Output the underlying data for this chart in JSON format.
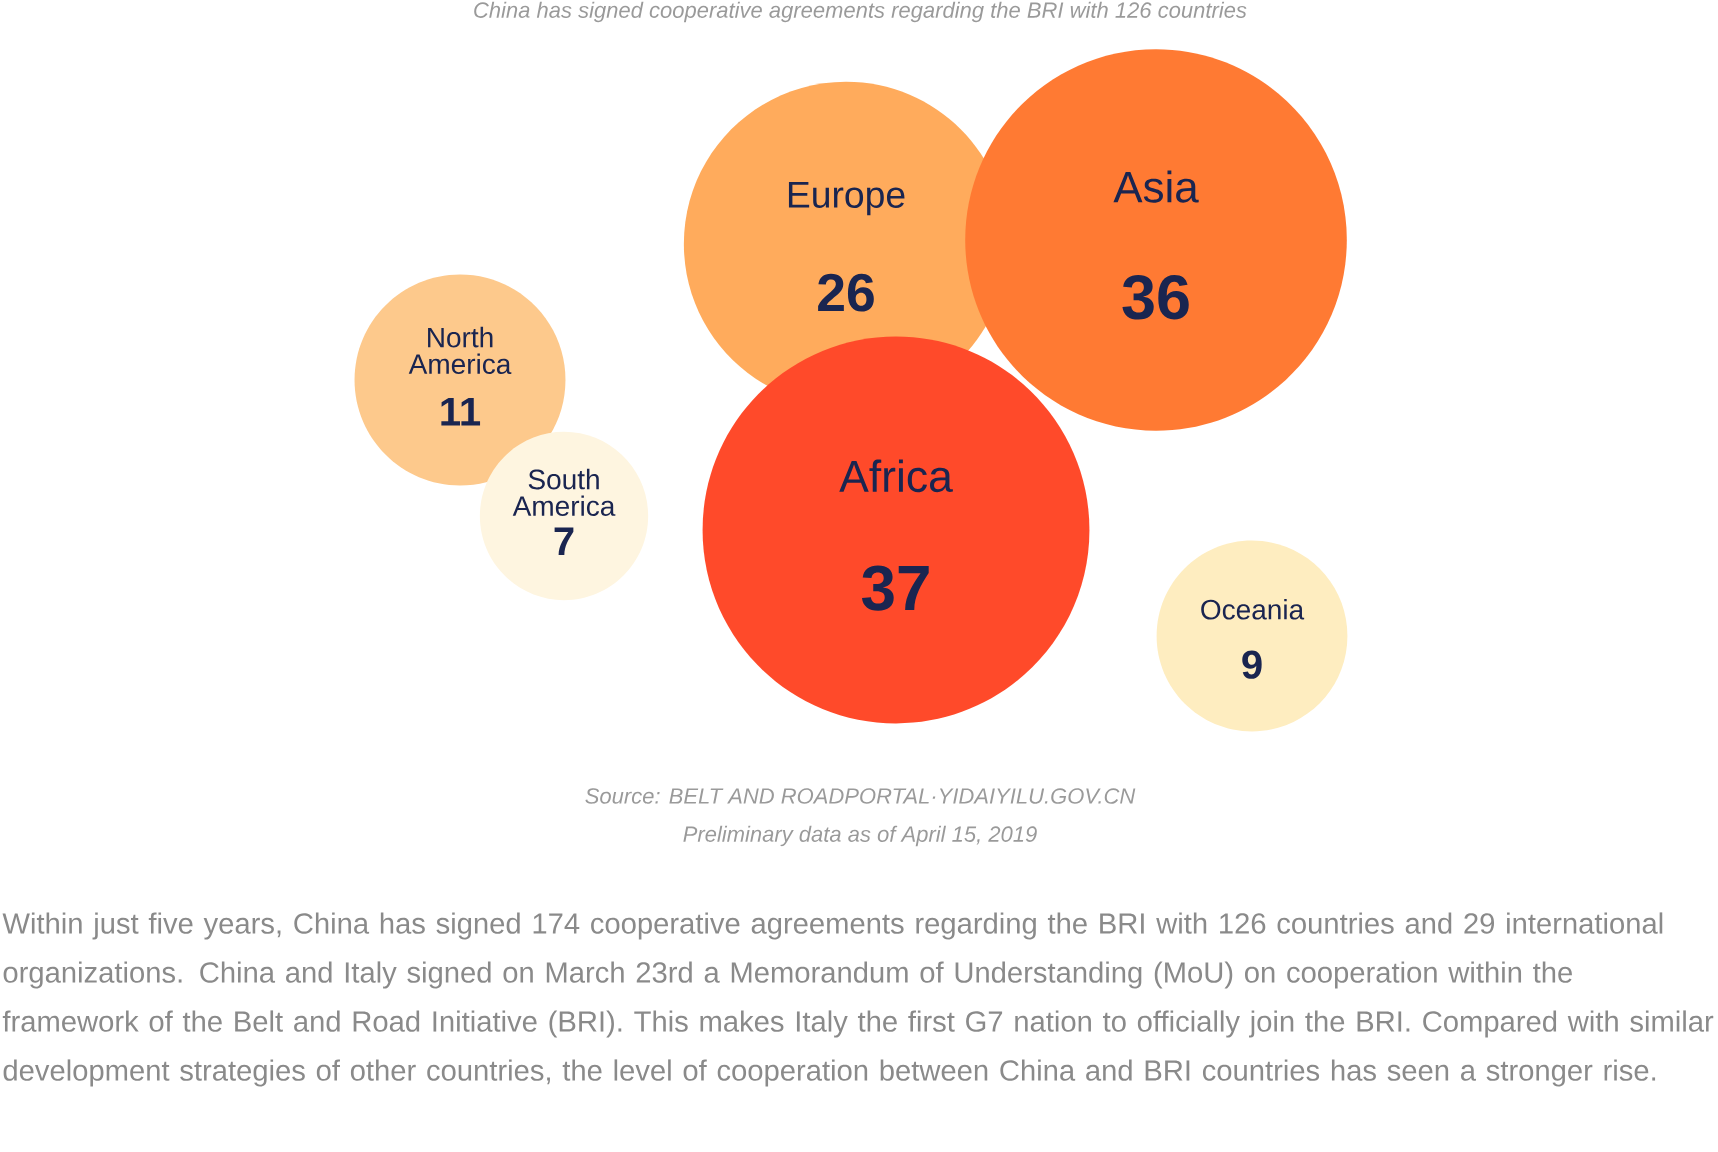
{
  "chart_data": {
    "type": "other",
    "title": "China has signed cooperative agreements regarding the BRI with 126 countries",
    "categories": [
      "Europe",
      "Asia",
      "North America",
      "Africa",
      "South America",
      "Oceania"
    ],
    "values": [
      26,
      36,
      11,
      37,
      7,
      9
    ],
    "colors": [
      "#ffab5c",
      "#ff7a33",
      "#fdc98c",
      "#ff4a2a",
      "#fef5e0",
      "#feedc0"
    ],
    "data_labels": true,
    "annotations": [
      "Source: BELT AND ROADPORTAL·YIDAIYILU.GOV.CN",
      "Preliminary data as of April 15, 2019",
      "Within just five years, China has signed 174 cooperative agreements regarding  the BRI with 126 countries and 29 international organizations. China and Italy signed on March 23rd a Memorandum of Understanding (MoU) on cooperation within the framework of the Belt and Road Initiative (BRI). This makes Italy the first G7 nation to officially join the BRI. Compared with similar development strategies of other countries, the level of cooperation between China and BRI countries has seen a stronger rise."
    ]
  }
}
